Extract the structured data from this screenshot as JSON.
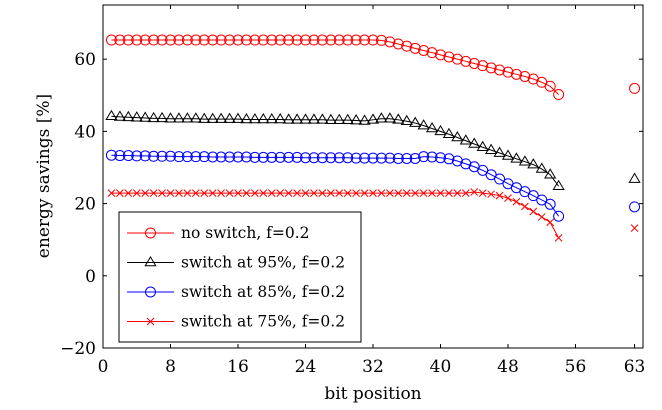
{
  "chart_data": {
    "type": "line",
    "title": "",
    "xlabel": "bit position",
    "ylabel": "energy savings [%]",
    "xlim": [
      0,
      64
    ],
    "ylim": [
      -20,
      75
    ],
    "xticks": [
      0,
      8,
      16,
      24,
      32,
      40,
      48,
      56,
      63
    ],
    "yticks": [
      -20,
      0,
      20,
      40,
      60
    ],
    "grid": false,
    "legend_position": "bottom-left",
    "x": [
      1,
      2,
      3,
      4,
      5,
      6,
      7,
      8,
      9,
      10,
      11,
      12,
      13,
      14,
      15,
      16,
      17,
      18,
      19,
      20,
      21,
      22,
      23,
      24,
      25,
      26,
      27,
      28,
      29,
      30,
      31,
      32,
      33,
      34,
      35,
      36,
      37,
      38,
      39,
      40,
      41,
      42,
      43,
      44,
      45,
      46,
      47,
      48,
      49,
      50,
      51,
      52,
      53,
      54,
      63
    ],
    "series": [
      {
        "name": "no switch, f=0.2",
        "color": "#ff0000",
        "marker": "circle",
        "values": [
          65.3,
          65.3,
          65.3,
          65.3,
          65.3,
          65.3,
          65.3,
          65.3,
          65.3,
          65.3,
          65.3,
          65.3,
          65.3,
          65.3,
          65.3,
          65.3,
          65.3,
          65.3,
          65.3,
          65.3,
          65.3,
          65.3,
          65.3,
          65.3,
          65.3,
          65.3,
          65.3,
          65.3,
          65.3,
          65.3,
          65.3,
          65.3,
          65.2,
          64.8,
          64.2,
          63.6,
          63.0,
          62.4,
          61.8,
          61.2,
          60.6,
          60.0,
          59.4,
          58.8,
          58.2,
          57.6,
          57.0,
          56.4,
          55.8,
          55.2,
          54.5,
          53.6,
          52.5,
          50.2,
          51.9
        ]
      },
      {
        "name": "switch at 95%, f=0.2",
        "color": "#000000",
        "marker": "triangle",
        "values": [
          44.2,
          44.0,
          43.9,
          43.8,
          43.7,
          43.6,
          43.6,
          43.5,
          43.5,
          43.5,
          43.5,
          43.4,
          43.4,
          43.4,
          43.4,
          43.4,
          43.3,
          43.3,
          43.3,
          43.3,
          43.3,
          43.2,
          43.2,
          43.2,
          43.2,
          43.2,
          43.1,
          43.1,
          43.1,
          43.0,
          42.9,
          43.2,
          43.5,
          43.5,
          43.2,
          42.8,
          42.3,
          41.6,
          40.8,
          40.0,
          39.2,
          38.3,
          37.4,
          36.5,
          35.6,
          34.8,
          34.0,
          33.2,
          32.4,
          31.6,
          30.8,
          29.6,
          28.0,
          24.8,
          26.8
        ]
      },
      {
        "name": "switch at 85%, f=0.2",
        "color": "#0000ff",
        "marker": "circle",
        "values": [
          33.4,
          33.3,
          33.3,
          33.2,
          33.2,
          33.1,
          33.1,
          33.1,
          33.0,
          33.0,
          33.0,
          33.0,
          32.9,
          32.9,
          32.9,
          32.9,
          32.9,
          32.8,
          32.8,
          32.8,
          32.8,
          32.8,
          32.8,
          32.7,
          32.7,
          32.7,
          32.7,
          32.7,
          32.7,
          32.6,
          32.6,
          32.6,
          32.6,
          32.6,
          32.5,
          32.5,
          32.5,
          33.0,
          32.9,
          32.7,
          32.4,
          31.8,
          31.0,
          30.2,
          29.2,
          28.0,
          26.8,
          25.5,
          24.4,
          23.3,
          22.2,
          21.0,
          19.8,
          16.5,
          19.1
        ]
      },
      {
        "name": "switch at 75%, f=0.2",
        "color": "#ff0000",
        "marker": "cross",
        "values": [
          22.9,
          22.9,
          22.9,
          22.9,
          22.9,
          22.9,
          22.9,
          22.9,
          22.9,
          22.9,
          22.9,
          22.9,
          22.9,
          22.9,
          22.9,
          22.9,
          22.9,
          22.9,
          22.9,
          22.9,
          22.9,
          22.9,
          22.9,
          22.9,
          22.9,
          22.9,
          22.9,
          22.9,
          22.9,
          22.9,
          22.9,
          22.9,
          22.9,
          22.9,
          22.9,
          22.9,
          22.9,
          22.9,
          22.9,
          22.9,
          22.9,
          22.9,
          22.9,
          23.2,
          22.9,
          22.6,
          22.2,
          21.5,
          20.5,
          19.2,
          17.8,
          16.3,
          14.8,
          10.5,
          13.2
        ]
      }
    ]
  }
}
